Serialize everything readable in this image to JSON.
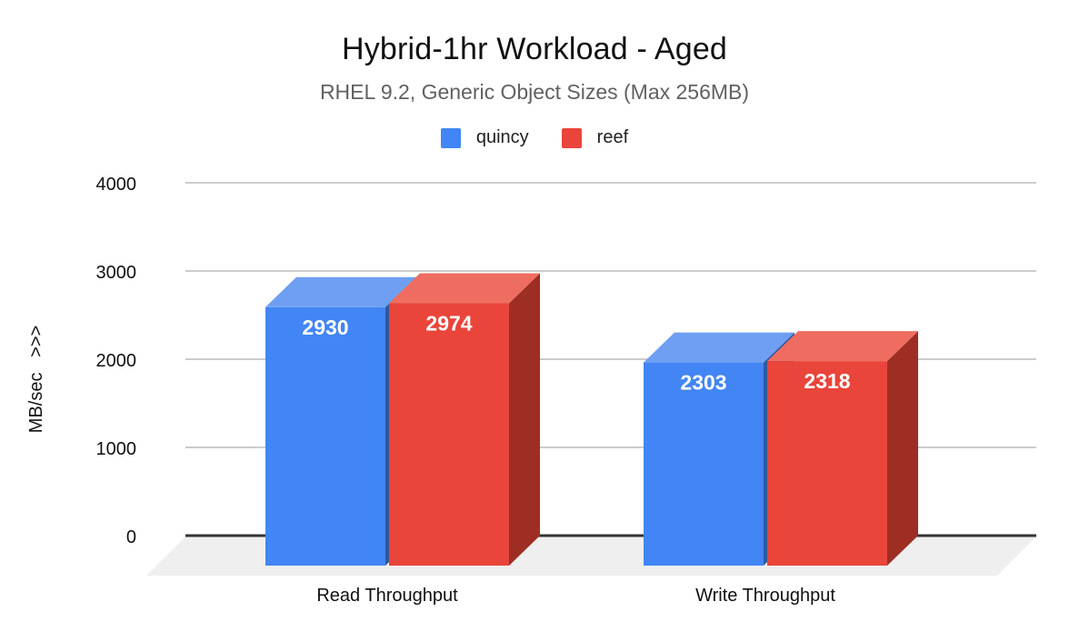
{
  "header": {
    "title": "Hybrid-1hr Workload - Aged",
    "subtitle": "RHEL 9.2, Generic Object Sizes (Max 256MB)"
  },
  "legend": {
    "position": "top",
    "items": [
      {
        "label": "quincy",
        "color": "#4285f4"
      },
      {
        "label": "reef",
        "color": "#e9453a"
      }
    ]
  },
  "chart_data": {
    "type": "bar",
    "style": "3d-column",
    "title": "Hybrid-1hr Workload - Aged",
    "subtitle": "RHEL 9.2, Generic Object Sizes (Max 256MB)",
    "categories": [
      "Read Throughput",
      "Write Throughput"
    ],
    "series": [
      {
        "name": "quincy",
        "values": [
          2930,
          2303
        ],
        "color": "#4285f4",
        "top_color": "#6f9ff2",
        "side_color": "#31589f"
      },
      {
        "name": "reef",
        "values": [
          2974,
          2318
        ],
        "color": "#e9453a",
        "top_color": "#ee6d60",
        "side_color": "#9e2e24"
      }
    ],
    "xlabel": "",
    "ylabel": "MB/sec   >>>",
    "ylim": [
      0,
      4000
    ],
    "yticks": [
      0,
      1000,
      2000,
      3000,
      4000
    ],
    "grid": true,
    "value_labels_shown": true,
    "value_label_color": "#ffffff",
    "gridline_color": "#cccccc",
    "axis_line_color": "#333333",
    "floor_color": "#efefef",
    "tick_label_color": "#111111",
    "category_label_color": "#111111"
  }
}
